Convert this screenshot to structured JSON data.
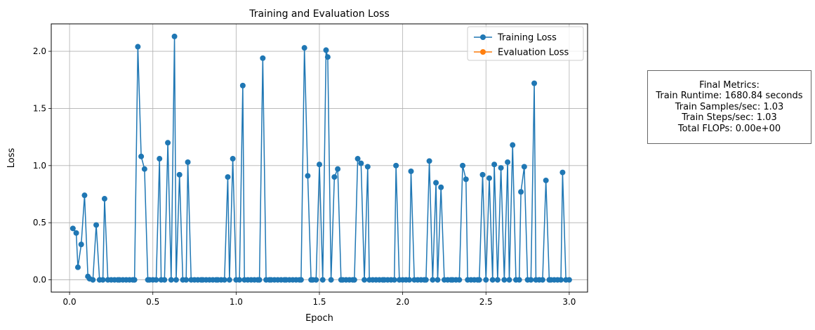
{
  "chart_data": {
    "type": "line",
    "title": "Training and Evaluation Loss",
    "xlabel": "Epoch",
    "ylabel": "Loss",
    "xlim": [
      -0.11,
      3.11
    ],
    "ylim": [
      -0.107,
      2.24
    ],
    "grid": true,
    "legend_placement": "top-right",
    "x_ticks": [
      0.0,
      0.5,
      1.0,
      1.5,
      2.0,
      2.5,
      3.0
    ],
    "x_tick_labels": [
      "0.0",
      "0.5",
      "1.0",
      "1.5",
      "2.0",
      "2.5",
      "3.0"
    ],
    "y_ticks": [
      0.0,
      0.5,
      1.0,
      1.5,
      2.0
    ],
    "y_tick_labels": [
      "0.0",
      "0.5",
      "1.0",
      "1.5",
      "2.0"
    ],
    "series": [
      {
        "name": "Training Loss",
        "color": "#1f77b4",
        "points": [
          [
            0.02,
            0.45
          ],
          [
            0.04,
            0.41
          ],
          [
            0.05,
            0.11
          ],
          [
            0.07,
            0.31
          ],
          [
            0.09,
            0.74
          ],
          [
            0.11,
            0.03
          ],
          [
            0.12,
            0.01
          ],
          [
            0.14,
            0.0
          ],
          [
            0.16,
            0.48
          ],
          [
            0.18,
            0.0
          ],
          [
            0.2,
            0.0
          ],
          [
            0.21,
            0.71
          ],
          [
            0.23,
            0.0
          ],
          [
            0.25,
            0.0
          ],
          [
            0.27,
            0.0
          ],
          [
            0.29,
            0.0
          ],
          [
            0.3,
            0.0
          ],
          [
            0.32,
            0.0
          ],
          [
            0.34,
            0.0
          ],
          [
            0.36,
            0.0
          ],
          [
            0.38,
            0.0
          ],
          [
            0.39,
            0.0
          ],
          [
            0.41,
            2.04
          ],
          [
            0.43,
            1.08
          ],
          [
            0.45,
            0.97
          ],
          [
            0.47,
            0.0
          ],
          [
            0.48,
            0.0
          ],
          [
            0.5,
            0.0
          ],
          [
            0.52,
            0.0
          ],
          [
            0.54,
            1.06
          ],
          [
            0.55,
            0.0
          ],
          [
            0.57,
            0.0
          ],
          [
            0.59,
            1.2
          ],
          [
            0.61,
            0.0
          ],
          [
            0.63,
            2.13
          ],
          [
            0.64,
            0.0
          ],
          [
            0.66,
            0.92
          ],
          [
            0.68,
            0.0
          ],
          [
            0.7,
            0.0
          ],
          [
            0.71,
            1.03
          ],
          [
            0.73,
            0.0
          ],
          [
            0.75,
            0.0
          ],
          [
            0.77,
            0.0
          ],
          [
            0.79,
            0.0
          ],
          [
            0.8,
            0.0
          ],
          [
            0.82,
            0.0
          ],
          [
            0.84,
            0.0
          ],
          [
            0.86,
            0.0
          ],
          [
            0.88,
            0.0
          ],
          [
            0.89,
            0.0
          ],
          [
            0.91,
            0.0
          ],
          [
            0.93,
            0.0
          ],
          [
            0.95,
            0.9
          ],
          [
            0.96,
            0.0
          ],
          [
            0.98,
            1.06
          ],
          [
            1.0,
            0.0
          ],
          [
            1.02,
            0.0
          ],
          [
            1.04,
            1.7
          ],
          [
            1.05,
            0.0
          ],
          [
            1.07,
            0.0
          ],
          [
            1.09,
            0.0
          ],
          [
            1.11,
            0.0
          ],
          [
            1.13,
            0.0
          ],
          [
            1.14,
            0.0
          ],
          [
            1.16,
            1.94
          ],
          [
            1.18,
            0.0
          ],
          [
            1.2,
            0.0
          ],
          [
            1.21,
            0.0
          ],
          [
            1.23,
            0.0
          ],
          [
            1.25,
            0.0
          ],
          [
            1.27,
            0.0
          ],
          [
            1.29,
            0.0
          ],
          [
            1.3,
            0.0
          ],
          [
            1.32,
            0.0
          ],
          [
            1.34,
            0.0
          ],
          [
            1.36,
            0.0
          ],
          [
            1.38,
            0.0
          ],
          [
            1.39,
            0.0
          ],
          [
            1.41,
            2.03
          ],
          [
            1.43,
            0.91
          ],
          [
            1.45,
            0.0
          ],
          [
            1.46,
            0.0
          ],
          [
            1.48,
            0.0
          ],
          [
            1.5,
            1.01
          ],
          [
            1.52,
            0.0
          ],
          [
            1.54,
            2.01
          ],
          [
            1.55,
            1.95
          ],
          [
            1.57,
            0.0
          ],
          [
            1.59,
            0.9
          ],
          [
            1.61,
            0.97
          ],
          [
            1.63,
            0.0
          ],
          [
            1.64,
            0.0
          ],
          [
            1.66,
            0.0
          ],
          [
            1.68,
            0.0
          ],
          [
            1.7,
            0.0
          ],
          [
            1.71,
            0.0
          ],
          [
            1.73,
            1.06
          ],
          [
            1.75,
            1.02
          ],
          [
            1.77,
            0.0
          ],
          [
            1.79,
            0.99
          ],
          [
            1.8,
            0.0
          ],
          [
            1.82,
            0.0
          ],
          [
            1.84,
            0.0
          ],
          [
            1.86,
            0.0
          ],
          [
            1.88,
            0.0
          ],
          [
            1.89,
            0.0
          ],
          [
            1.91,
            0.0
          ],
          [
            1.93,
            0.0
          ],
          [
            1.95,
            0.0
          ],
          [
            1.96,
            1.0
          ],
          [
            1.98,
            0.0
          ],
          [
            2.0,
            0.0
          ],
          [
            2.02,
            0.0
          ],
          [
            2.04,
            0.0
          ],
          [
            2.05,
            0.95
          ],
          [
            2.07,
            0.0
          ],
          [
            2.09,
            0.0
          ],
          [
            2.11,
            0.0
          ],
          [
            2.13,
            0.0
          ],
          [
            2.14,
            0.0
          ],
          [
            2.16,
            1.04
          ],
          [
            2.18,
            0.0
          ],
          [
            2.2,
            0.85
          ],
          [
            2.21,
            0.0
          ],
          [
            2.23,
            0.81
          ],
          [
            2.25,
            0.0
          ],
          [
            2.27,
            0.0
          ],
          [
            2.29,
            0.0
          ],
          [
            2.3,
            0.0
          ],
          [
            2.32,
            0.0
          ],
          [
            2.34,
            0.0
          ],
          [
            2.36,
            1.0
          ],
          [
            2.38,
            0.88
          ],
          [
            2.39,
            0.0
          ],
          [
            2.41,
            0.0
          ],
          [
            2.43,
            0.0
          ],
          [
            2.45,
            0.0
          ],
          [
            2.46,
            0.0
          ],
          [
            2.48,
            0.92
          ],
          [
            2.5,
            0.0
          ],
          [
            2.52,
            0.89
          ],
          [
            2.54,
            0.0
          ],
          [
            2.55,
            1.01
          ],
          [
            2.57,
            0.0
          ],
          [
            2.59,
            0.98
          ],
          [
            2.61,
            0.0
          ],
          [
            2.63,
            1.03
          ],
          [
            2.64,
            0.0
          ],
          [
            2.66,
            1.18
          ],
          [
            2.68,
            0.0
          ],
          [
            2.7,
            0.0
          ],
          [
            2.71,
            0.77
          ],
          [
            2.73,
            0.99
          ],
          [
            2.75,
            0.0
          ],
          [
            2.77,
            0.0
          ],
          [
            2.79,
            1.72
          ],
          [
            2.8,
            0.0
          ],
          [
            2.82,
            0.0
          ],
          [
            2.84,
            0.0
          ],
          [
            2.86,
            0.87
          ],
          [
            2.88,
            0.0
          ],
          [
            2.89,
            0.0
          ],
          [
            2.91,
            0.0
          ],
          [
            2.93,
            0.0
          ],
          [
            2.95,
            0.0
          ],
          [
            2.96,
            0.94
          ],
          [
            2.98,
            0.0
          ],
          [
            3.0,
            0.0
          ]
        ]
      },
      {
        "name": "Evaluation Loss",
        "color": "#ff7f0e",
        "points": []
      }
    ]
  },
  "metrics_box": {
    "title": "Final Metrics:",
    "lines": [
      "Train Runtime: 1680.84 seconds",
      "Train Samples/sec: 1.03",
      "Train Steps/sec: 1.03",
      "Total FLOPs: 0.00e+00"
    ]
  }
}
